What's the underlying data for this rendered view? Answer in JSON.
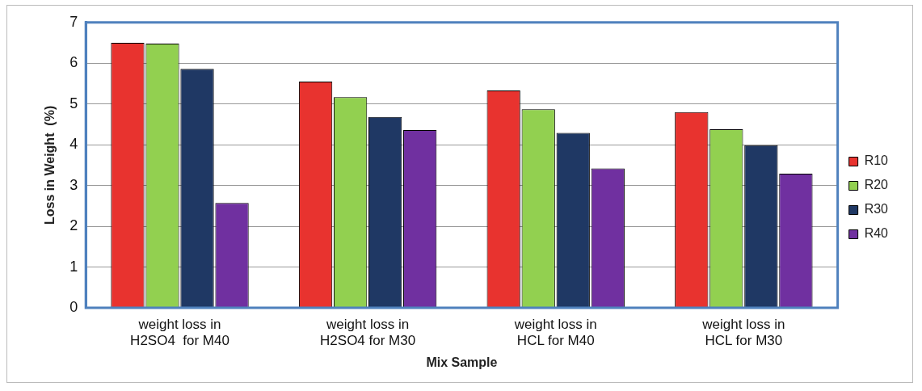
{
  "chart_data": {
    "type": "bar",
    "xlabel": "Mix Sample",
    "ylabel": "Loss in Weight  (%)",
    "categories": [
      "weight loss in H2SO4  for M40",
      "weight loss in H2SO4 for M30",
      "weight loss in HCL for M40",
      "weight loss in HCL for M30"
    ],
    "series": [
      {
        "name": "R10",
        "color": "#e8332f",
        "values": [
          6.5,
          5.55,
          5.33,
          4.8
        ]
      },
      {
        "name": "R20",
        "color": "#92d050",
        "values": [
          6.48,
          5.17,
          4.87,
          4.38
        ]
      },
      {
        "name": "R30",
        "color": "#1f3864",
        "values": [
          5.86,
          4.68,
          4.29,
          3.99
        ]
      },
      {
        "name": "R40",
        "color": "#7030a0",
        "values": [
          2.57,
          4.36,
          3.42,
          3.29
        ]
      }
    ],
    "ylim": [
      0,
      7
    ],
    "yticks": [
      0,
      1,
      2,
      3,
      4,
      5,
      6,
      7
    ],
    "grid": "y",
    "legend": "right"
  }
}
